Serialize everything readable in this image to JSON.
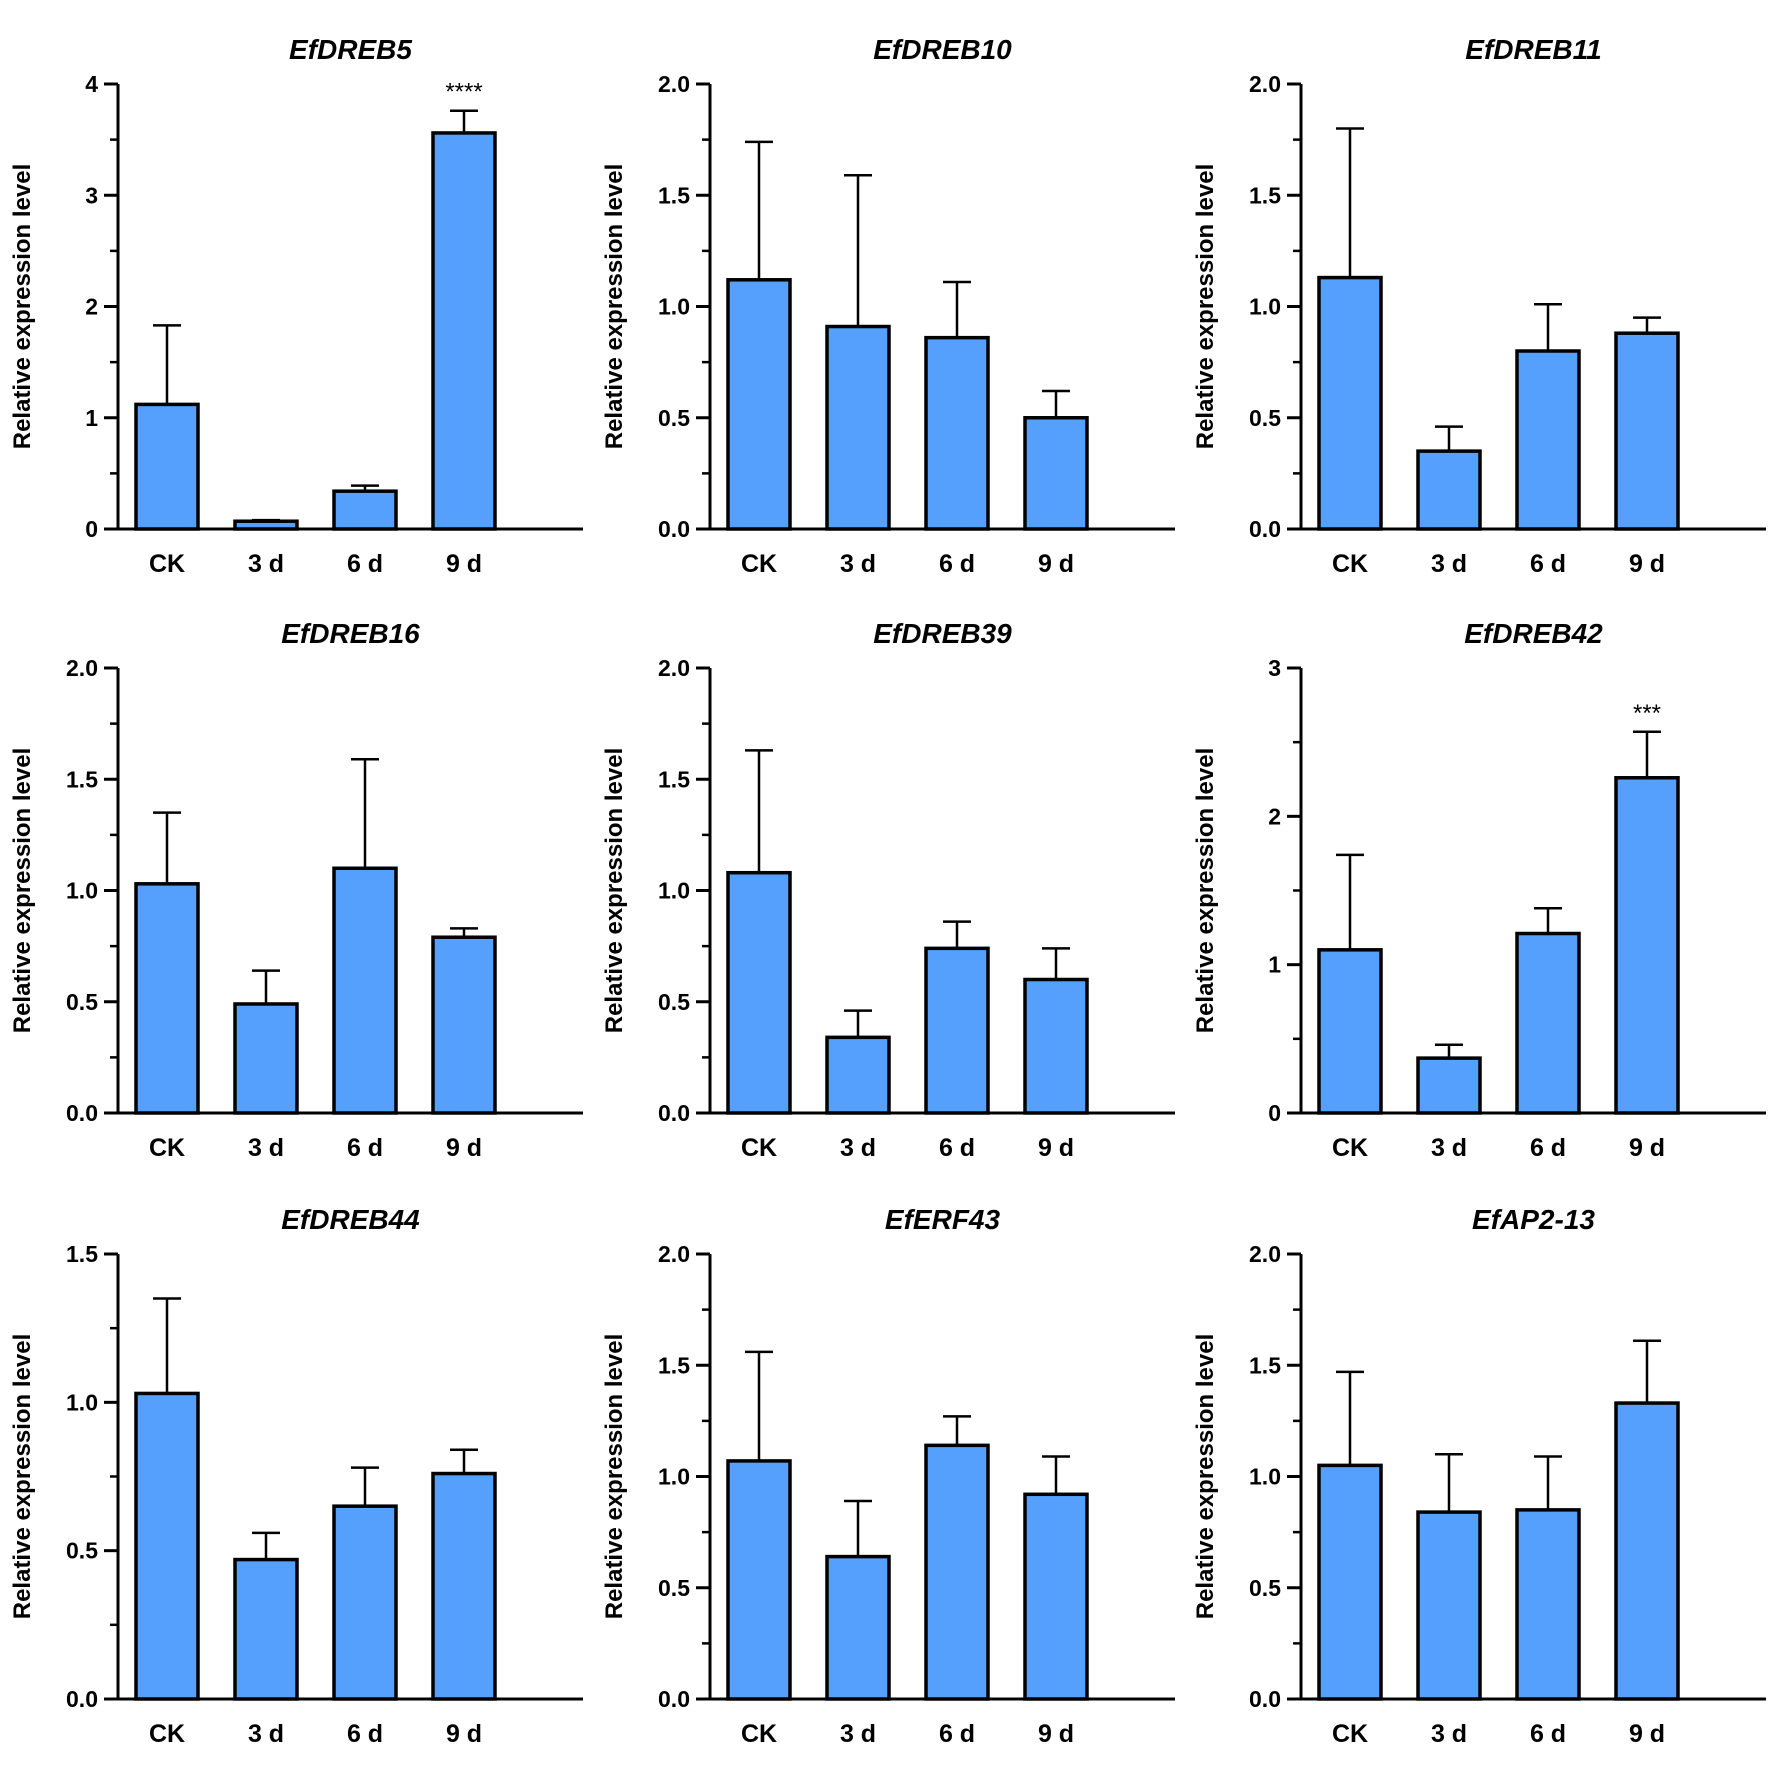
{
  "figure": {
    "background": "#ffffff",
    "bar_color": "#559ffd",
    "edge_color": "#000000"
  },
  "chart_data": [
    {
      "type": "bar",
      "title": "EfDREB5",
      "ylabel": "Relative expression level",
      "xlabel": "",
      "categories": [
        "CK",
        "3 d",
        "6 d",
        "9 d"
      ],
      "values": [
        1.12,
        0.07,
        0.34,
        3.56
      ],
      "errors": [
        0.71,
        0.01,
        0.05,
        0.2
      ],
      "ylim": [
        0,
        4
      ],
      "yticks": [
        "0",
        "1",
        "2",
        "3",
        "4"
      ],
      "significance": [
        "",
        "",
        "",
        "****"
      ]
    },
    {
      "type": "bar",
      "title": "EfDREB10",
      "ylabel": "Relative expression level",
      "xlabel": "",
      "categories": [
        "CK",
        "3 d",
        "6 d",
        "9 d"
      ],
      "values": [
        1.12,
        0.91,
        0.86,
        0.5
      ],
      "errors": [
        0.62,
        0.68,
        0.25,
        0.12
      ],
      "ylim": [
        0,
        2
      ],
      "yticks": [
        "0.0",
        "0.5",
        "1.0",
        "1.5",
        "2.0"
      ],
      "significance": [
        "",
        "",
        "",
        ""
      ]
    },
    {
      "type": "bar",
      "title": "EfDREB11",
      "ylabel": "Relative expression level",
      "xlabel": "",
      "categories": [
        "CK",
        "3 d",
        "6 d",
        "9 d"
      ],
      "values": [
        1.13,
        0.35,
        0.8,
        0.88
      ],
      "errors": [
        0.67,
        0.11,
        0.21,
        0.07
      ],
      "ylim": [
        0,
        2
      ],
      "yticks": [
        "0.0",
        "0.5",
        "1.0",
        "1.5",
        "2.0"
      ],
      "significance": [
        "",
        "",
        "",
        ""
      ]
    },
    {
      "type": "bar",
      "title": "EfDREB16",
      "ylabel": "Relative expression level",
      "xlabel": "",
      "categories": [
        "CK",
        "3 d",
        "6 d",
        "9 d"
      ],
      "values": [
        1.03,
        0.49,
        1.1,
        0.79
      ],
      "errors": [
        0.32,
        0.15,
        0.49,
        0.04
      ],
      "ylim": [
        0,
        2
      ],
      "yticks": [
        "0.0",
        "0.5",
        "1.0",
        "1.5",
        "2.0"
      ],
      "significance": [
        "",
        "",
        "",
        ""
      ]
    },
    {
      "type": "bar",
      "title": "EfDREB39",
      "ylabel": "Relative expression level",
      "xlabel": "",
      "categories": [
        "CK",
        "3 d",
        "6 d",
        "9 d"
      ],
      "values": [
        1.08,
        0.34,
        0.74,
        0.6
      ],
      "errors": [
        0.55,
        0.12,
        0.12,
        0.14
      ],
      "ylim": [
        0,
        2
      ],
      "yticks": [
        "0.0",
        "0.5",
        "1.0",
        "1.5",
        "2.0"
      ],
      "significance": [
        "",
        "",
        "",
        ""
      ]
    },
    {
      "type": "bar",
      "title": "EfDREB42",
      "ylabel": "Relative expression level",
      "xlabel": "",
      "categories": [
        "CK",
        "3 d",
        "6 d",
        "9 d"
      ],
      "values": [
        1.1,
        0.37,
        1.21,
        2.26
      ],
      "errors": [
        0.64,
        0.09,
        0.17,
        0.31
      ],
      "ylim": [
        0,
        3
      ],
      "yticks": [
        "0",
        "1",
        "2",
        "3"
      ],
      "significance": [
        "",
        "",
        "",
        "***"
      ]
    },
    {
      "type": "bar",
      "title": "EfDREB44",
      "ylabel": "Relative expression level",
      "xlabel": "",
      "categories": [
        "CK",
        "3 d",
        "6 d",
        "9 d"
      ],
      "values": [
        1.03,
        0.47,
        0.65,
        0.76
      ],
      "errors": [
        0.32,
        0.09,
        0.13,
        0.08
      ],
      "ylim": [
        0,
        1.5
      ],
      "yticks": [
        "0.0",
        "0.5",
        "1.0",
        "1.5"
      ],
      "significance": [
        "",
        "",
        "",
        ""
      ]
    },
    {
      "type": "bar",
      "title": "EfERF43",
      "ylabel": "Relative expression level",
      "xlabel": "",
      "categories": [
        "CK",
        "3 d",
        "6 d",
        "9 d"
      ],
      "values": [
        1.07,
        0.64,
        1.14,
        0.92
      ],
      "errors": [
        0.49,
        0.25,
        0.13,
        0.17
      ],
      "ylim": [
        0,
        2
      ],
      "yticks": [
        "0.0",
        "0.5",
        "1.0",
        "1.5",
        "2.0"
      ],
      "significance": [
        "",
        "",
        "",
        ""
      ]
    },
    {
      "type": "bar",
      "title": "EfAP2-13",
      "ylabel": "Relative expression level",
      "xlabel": "",
      "categories": [
        "CK",
        "3 d",
        "6 d",
        "9 d"
      ],
      "values": [
        1.05,
        0.84,
        0.85,
        1.33
      ],
      "errors": [
        0.42,
        0.26,
        0.24,
        0.28
      ],
      "ylim": [
        0,
        2
      ],
      "yticks": [
        "0.0",
        "0.5",
        "1.0",
        "1.5",
        "2.0"
      ],
      "significance": [
        "",
        "",
        "",
        ""
      ]
    }
  ]
}
